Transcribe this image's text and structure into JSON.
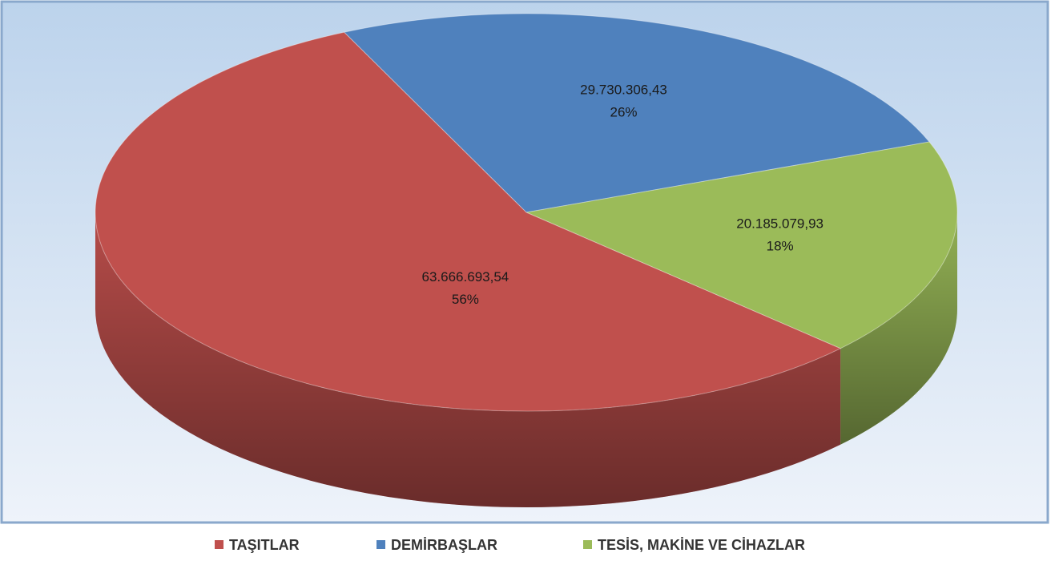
{
  "chart_data": {
    "type": "pie3d",
    "categories": [
      "TAŞITLAR",
      "DEMİRBAŞLAR",
      "TESİS, MAKİNE VE CİHAZLAR"
    ],
    "values": [
      63666693.54,
      29730306.43,
      20185079.93
    ],
    "value_labels": [
      "63.666.693,54",
      "29.730.306,43",
      "20.185.079,93"
    ],
    "percent_labels": [
      "56%",
      "26%",
      "18%"
    ],
    "colors": [
      "#c0504d",
      "#4f81bd",
      "#9bbb59"
    ],
    "legend": "bottom"
  }
}
